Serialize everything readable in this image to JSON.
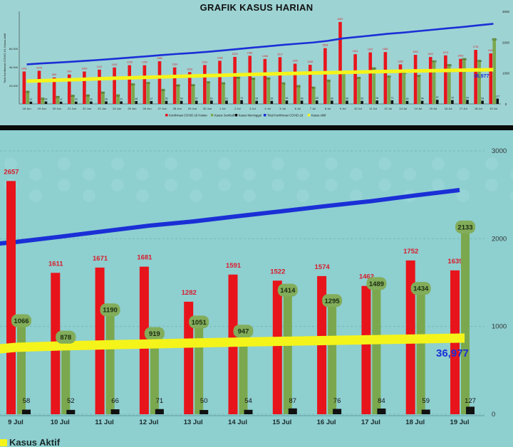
{
  "title": "GRAFIK KASUS HARIAN",
  "overview": {
    "ylabel_left": "Total Konfirmasi COVID-19, Kasus Aktif",
    "right_ticks": [
      "3000",
      "2000",
      "1000",
      "0"
    ],
    "left_ticks": [
      "60,000",
      "40,000",
      "20,000"
    ],
    "legend": [
      {
        "label": "Konfirmasi COVID-19 Harian",
        "color": "#e8141b"
      },
      {
        "label": "Kasus Sembuh",
        "color": "#7ba84e"
      },
      {
        "label": "Kasus Meninggal",
        "color": "#111111"
      },
      {
        "label": "Total Konfirmasi COVID-19",
        "color": "#1a2fd6"
      },
      {
        "label": "Kasus Aktif",
        "color": "#f4f41a"
      }
    ],
    "active_label": "36,977"
  },
  "colors": {
    "confirmed": "#e8141b",
    "recovered": "#7ba84e",
    "deaths": "#111111",
    "total": "#1a2fd6",
    "active": "#f4f41a",
    "active_bubble": "#82ad5a",
    "label_red": "#d91c2a"
  },
  "chart_data": [
    {
      "type": "bar",
      "title": "GRAFIK KASUS HARIAN",
      "categories": [
        "18 Jun",
        "19 Jun",
        "20 Jun",
        "21 Jun",
        "22 Jun",
        "23 Jun",
        "24 Jun",
        "25 Jun",
        "26 Jun",
        "27 Jun",
        "28 Jun",
        "29 Jun",
        "30 Jun",
        "1 Jul",
        "2 Jul",
        "3 Jul",
        "4 Jul",
        "5 Jul",
        "6 Jul",
        "7 Jul",
        "8 Jul",
        "9 Jul",
        "10 Jul",
        "11 Jul",
        "12 Jul",
        "13 Jul",
        "14 Jul",
        "15 Jul",
        "16 Jul",
        "17 Jul",
        "18 Jul",
        "19 Jul"
      ],
      "series": [
        {
          "name": "Konfirmasi COVID-19 Harian",
          "type": "bar",
          "values": [
            1051,
            1076,
            858,
            954,
            1050,
            1112,
            1182,
            1256,
            1254,
            1382,
            1184,
            1030,
            1261,
            1398,
            1524,
            1561,
            1458,
            1517,
            1305,
            1268,
            1808,
            2657,
            1611,
            1671,
            1681,
            1282,
            1591,
            1522,
            1574,
            1462,
            1752,
            1639
          ]
        },
        {
          "name": "Kasus Sembuh",
          "type": "bar",
          "values": [
            432,
            210,
            260,
            295,
            308,
            400,
            313,
            670,
            715,
            490,
            640,
            642,
            733,
            705,
            883,
            852,
            860,
            701,
            616,
            561,
            790,
            1066,
            878,
            1190,
            919,
            1051,
            947,
            1414,
            1295,
            1489,
            1434,
            2133
          ]
        },
        {
          "name": "Kasus Meninggal",
          "type": "bar",
          "values": [
            27,
            34,
            27,
            30,
            32,
            36,
            37,
            48,
            47,
            53,
            53,
            57,
            61,
            61,
            74,
            55,
            52,
            64,
            60,
            65,
            60,
            58,
            52,
            66,
            71,
            50,
            54,
            87,
            76,
            84,
            59,
            127
          ]
        },
        {
          "name": "Total Konfirmasi COVID-19",
          "type": "line",
          "values": [
            42762,
            43803,
            44661,
            45615,
            46665,
            47777,
            48959,
            50215,
            51469,
            52851,
            54035,
            55065,
            56326,
            57724,
            59248,
            60809,
            62267,
            63784,
            65089,
            66357,
            68165,
            70822,
            72433,
            74104,
            75785,
            77067,
            78658,
            80180,
            81754,
            83216,
            84968,
            86607
          ]
        },
        {
          "name": "Kasus Aktif",
          "type": "line",
          "values": [
            24620,
            25120,
            25650,
            26200,
            26750,
            27300,
            27850,
            28300,
            28750,
            29200,
            29700,
            30150,
            30550,
            31000,
            31450,
            31900,
            32300,
            32700,
            33100,
            33450,
            33750,
            34000,
            34450,
            34800,
            35100,
            35400,
            35700,
            35950,
            36200,
            36450,
            36700,
            36977
          ]
        }
      ],
      "y_left_range": [
        0,
        100000
      ],
      "y_right_range": [
        0,
        3000
      ],
      "right_ticks": [
        0,
        1000,
        2000,
        3000
      ],
      "legend_position": "bottom"
    },
    {
      "type": "bar",
      "categories": [
        "9 Jul",
        "10 Jul",
        "11 Jul",
        "12 Jul",
        "13 Jul",
        "14 Jul",
        "15 Jul",
        "16 Jul",
        "17 Jul",
        "18 Jul",
        "19 Jul"
      ],
      "series": [
        {
          "name": "Konfirmasi COVID-19 Harian",
          "type": "bar",
          "values": [
            2657,
            1611,
            1671,
            1681,
            1282,
            1591,
            1522,
            1574,
            1462,
            1752,
            1639
          ]
        },
        {
          "name": "Kasus Sembuh",
          "type": "bar",
          "values": [
            1066,
            878,
            1190,
            919,
            1051,
            947,
            1414,
            1295,
            1489,
            1434,
            2133
          ]
        },
        {
          "name": "Kasus Meninggal",
          "type": "bar",
          "values": [
            58,
            52,
            66,
            71,
            50,
            54,
            87,
            76,
            84,
            59,
            127
          ]
        },
        {
          "name": "Total Konfirmasi COVID-19",
          "type": "line",
          "values": [
            70822,
            72433,
            74104,
            75785,
            77067,
            78658,
            80180,
            81754,
            83216,
            84968,
            86607
          ]
        },
        {
          "name": "Kasus Aktif",
          "type": "line",
          "values": [
            34000,
            34450,
            34800,
            35100,
            35400,
            35700,
            35950,
            36200,
            36450,
            36700,
            36977
          ]
        }
      ],
      "y_right_range": [
        0,
        3000
      ],
      "right_ticks": [
        0,
        1000,
        2000,
        3000
      ],
      "legend_position": "bottom-left",
      "legend_visible": "Kasus Aktif",
      "active_label": "36,977"
    }
  ]
}
